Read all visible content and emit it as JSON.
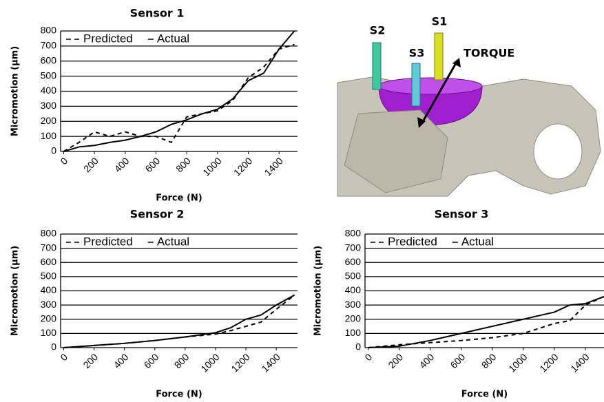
{
  "chart_data": [
    {
      "type": "line",
      "title": "Sensor 1",
      "xlabel": "Force (N)",
      "ylabel": "Micromotion (µm)",
      "x": [
        0,
        100,
        200,
        300,
        400,
        500,
        600,
        700,
        800,
        900,
        1000,
        1100,
        1200,
        1300,
        1400,
        1500
      ],
      "series": [
        {
          "name": "Predicted",
          "color": "#000000",
          "linestyle": "dashed",
          "values": [
            0,
            60,
            130,
            100,
            130,
            100,
            100,
            60,
            230,
            250,
            270,
            340,
            490,
            560,
            680,
            710
          ]
        },
        {
          "name": "Actual",
          "color": "#000000",
          "linestyle": "solid",
          "values": [
            0,
            30,
            40,
            60,
            75,
            100,
            130,
            180,
            210,
            250,
            280,
            350,
            470,
            520,
            680,
            800
          ]
        }
      ],
      "xlim": [
        -20,
        1520
      ],
      "xticks": [
        0,
        200,
        400,
        600,
        800,
        1000,
        1200,
        1400
      ],
      "ylim": [
        0,
        800
      ],
      "yticks": [
        0,
        100,
        200,
        300,
        400,
        500,
        600,
        700,
        800
      ],
      "grid": true,
      "legend": "upper left"
    },
    {
      "type": "line",
      "title": "Sensor 2",
      "xlabel": "Force (N)",
      "ylabel": "Micromotion (µm)",
      "x": [
        0,
        200,
        400,
        600,
        800,
        1000,
        1100,
        1200,
        1300,
        1400,
        1520
      ],
      "series": [
        {
          "name": "Predicted",
          "color": "#000000",
          "linestyle": "dashed",
          "values": [
            0,
            15,
            30,
            50,
            75,
            95,
            120,
            150,
            180,
            270,
            370
          ]
        },
        {
          "name": "Actual",
          "color": "#000000",
          "linestyle": "solid",
          "values": [
            0,
            15,
            30,
            50,
            75,
            105,
            140,
            200,
            230,
            300,
            370
          ]
        }
      ],
      "xlim": [
        -20,
        1540
      ],
      "xticks": [
        0,
        200,
        400,
        600,
        800,
        1000,
        1200,
        1400
      ],
      "ylim": [
        0,
        800
      ],
      "yticks": [
        0,
        100,
        200,
        300,
        400,
        500,
        600,
        700,
        800
      ],
      "grid": true,
      "legend": "upper left"
    },
    {
      "type": "line",
      "title": "Sensor 3",
      "xlabel": "Force (N)",
      "ylabel": "Micromotion (µm)",
      "x": [
        0,
        200,
        400,
        600,
        800,
        1000,
        1200,
        1300,
        1400,
        1520
      ],
      "series": [
        {
          "name": "Predicted",
          "color": "#000000",
          "linestyle": "dashed",
          "values": [
            0,
            20,
            35,
            50,
            70,
            100,
            170,
            190,
            300,
            360
          ]
        },
        {
          "name": "Actual",
          "color": "#000000",
          "linestyle": "solid",
          "values": [
            0,
            10,
            50,
            100,
            150,
            200,
            250,
            300,
            310,
            360
          ]
        }
      ],
      "xlim": [
        -20,
        1520
      ],
      "xticks": [
        0,
        200,
        400,
        600,
        800,
        1000,
        1200,
        1400
      ],
      "ylim": [
        0,
        800
      ],
      "yticks": [
        0,
        100,
        200,
        300,
        400,
        500,
        600,
        700,
        800
      ],
      "grid": true,
      "legend": "upper left"
    }
  ],
  "illustration": {
    "labels": {
      "s1": "S1",
      "s2": "S2",
      "s3": "S3",
      "torque": "TORQUE"
    }
  }
}
